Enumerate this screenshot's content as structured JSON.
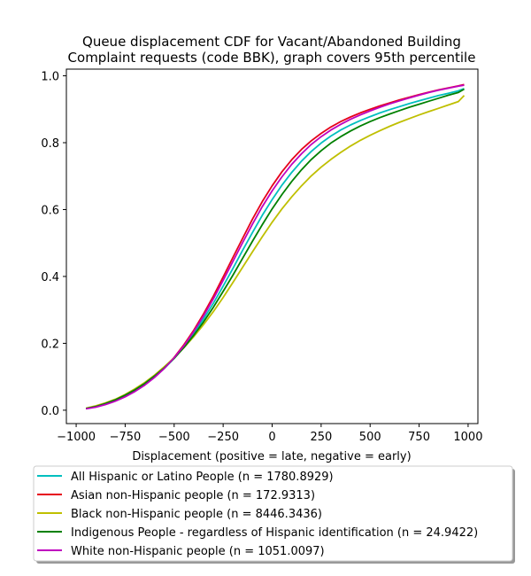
{
  "chart_data": {
    "type": "line",
    "title_lines": [
      "Queue displacement CDF for Vacant/Abandoned Building",
      "Complaint  requests (code BBK), graph covers 95th percentile"
    ],
    "xlabel": "Displacement (positive = late, negative = early)",
    "ylabel": "",
    "xlim": [
      -1050,
      1050
    ],
    "ylim": [
      -0.04,
      1.02
    ],
    "xticks": [
      -1000,
      -750,
      -500,
      -250,
      0,
      250,
      500,
      750,
      1000
    ],
    "xtick_labels": [
      "−1000",
      "−750",
      "−500",
      "−250",
      "0",
      "250",
      "500",
      "750",
      "1000"
    ],
    "yticks": [
      0.0,
      0.2,
      0.4,
      0.6,
      0.8,
      1.0
    ],
    "ytick_labels": [
      "0.0",
      "0.2",
      "0.4",
      "0.6",
      "0.8",
      "1.0"
    ],
    "grid": false,
    "legend_position": "bottom",
    "x": [
      -950,
      -900,
      -850,
      -800,
      -750,
      -700,
      -650,
      -600,
      -550,
      -500,
      -450,
      -400,
      -350,
      -300,
      -250,
      -200,
      -150,
      -100,
      -50,
      0,
      50,
      100,
      150,
      200,
      250,
      300,
      350,
      400,
      450,
      500,
      550,
      600,
      650,
      700,
      750,
      800,
      850,
      900,
      950,
      980
    ],
    "series": [
      {
        "name": "All Hispanic or Latino People (n = 1780.8929)",
        "color": "#00bfbf",
        "values": [
          0.005,
          0.011,
          0.019,
          0.029,
          0.042,
          0.058,
          0.077,
          0.099,
          0.125,
          0.155,
          0.19,
          0.229,
          0.273,
          0.32,
          0.371,
          0.424,
          0.479,
          0.532,
          0.583,
          0.63,
          0.673,
          0.711,
          0.745,
          0.774,
          0.799,
          0.82,
          0.838,
          0.853,
          0.866,
          0.878,
          0.889,
          0.899,
          0.908,
          0.917,
          0.925,
          0.933,
          0.941,
          0.948,
          0.955,
          0.962
        ]
      },
      {
        "name": "Asian non-Hispanic people (n = 172.9313)",
        "color": "#e6001a",
        "values": [
          0.005,
          0.01,
          0.018,
          0.028,
          0.041,
          0.057,
          0.076,
          0.099,
          0.126,
          0.158,
          0.196,
          0.239,
          0.288,
          0.341,
          0.398,
          0.457,
          0.515,
          0.572,
          0.624,
          0.671,
          0.713,
          0.749,
          0.78,
          0.806,
          0.828,
          0.847,
          0.863,
          0.877,
          0.889,
          0.9,
          0.91,
          0.919,
          0.928,
          0.936,
          0.944,
          0.951,
          0.958,
          0.964,
          0.97,
          0.974
        ]
      },
      {
        "name": "Black non-Hispanic people (n = 8446.3436)",
        "color": "#bfbf00",
        "values": [
          0.006,
          0.013,
          0.022,
          0.033,
          0.047,
          0.064,
          0.083,
          0.105,
          0.13,
          0.157,
          0.187,
          0.22,
          0.256,
          0.295,
          0.337,
          0.382,
          0.428,
          0.474,
          0.519,
          0.562,
          0.602,
          0.638,
          0.671,
          0.701,
          0.727,
          0.75,
          0.771,
          0.79,
          0.807,
          0.822,
          0.836,
          0.849,
          0.861,
          0.872,
          0.883,
          0.893,
          0.903,
          0.913,
          0.923,
          0.941
        ]
      },
      {
        "name": "Indigenous People - regardless of Hispanic identification (n = 24.9422)",
        "color": "#008000",
        "values": [
          0.005,
          0.011,
          0.02,
          0.031,
          0.045,
          0.061,
          0.08,
          0.102,
          0.127,
          0.155,
          0.188,
          0.224,
          0.264,
          0.308,
          0.355,
          0.404,
          0.455,
          0.506,
          0.555,
          0.602,
          0.645,
          0.684,
          0.719,
          0.75,
          0.776,
          0.799,
          0.818,
          0.835,
          0.85,
          0.863,
          0.875,
          0.886,
          0.896,
          0.906,
          0.915,
          0.924,
          0.933,
          0.942,
          0.95,
          0.96
        ]
      },
      {
        "name": "White non-Hispanic people (n = 1051.0097)",
        "color": "#bf00bf",
        "values": [
          0.004,
          0.009,
          0.017,
          0.027,
          0.04,
          0.056,
          0.075,
          0.098,
          0.125,
          0.157,
          0.193,
          0.235,
          0.282,
          0.333,
          0.388,
          0.445,
          0.502,
          0.557,
          0.609,
          0.656,
          0.698,
          0.735,
          0.767,
          0.795,
          0.818,
          0.838,
          0.855,
          0.87,
          0.883,
          0.895,
          0.906,
          0.916,
          0.925,
          0.934,
          0.942,
          0.95,
          0.957,
          0.963,
          0.969,
          0.972
        ]
      }
    ]
  }
}
